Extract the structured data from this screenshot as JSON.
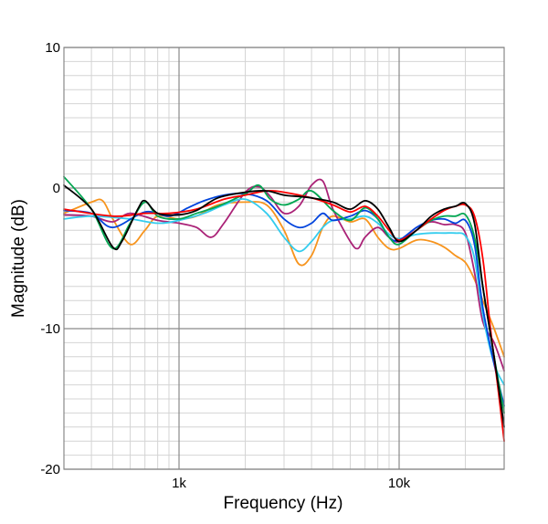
{
  "chart_data": {
    "type": "line",
    "xlabel": "Frequency (Hz)",
    "ylabel": "Magnitude (dB)",
    "x_scale": "log",
    "xlim": [
      300,
      30000
    ],
    "ylim": [
      -20,
      10
    ],
    "grid": true,
    "x_tick_labels": [
      {
        "value": 1000,
        "label": "1k"
      },
      {
        "value": 10000,
        "label": "10k"
      }
    ],
    "y_tick_labels": [
      {
        "value": 10,
        "label": "10"
      },
      {
        "value": 0,
        "label": "0"
      },
      {
        "value": -10,
        "label": "-10"
      },
      {
        "value": -20,
        "label": "-20"
      }
    ],
    "series": [
      {
        "color": "#000000",
        "points": [
          [
            300,
            0.2
          ],
          [
            400,
            -1.5
          ],
          [
            500,
            -4.2
          ],
          [
            550,
            -3.8
          ],
          [
            650,
            -1.5
          ],
          [
            700,
            -0.9
          ],
          [
            800,
            -1.8
          ],
          [
            1000,
            -1.9
          ],
          [
            1200,
            -1.6
          ],
          [
            1500,
            -0.7
          ],
          [
            2000,
            -0.3
          ],
          [
            2500,
            -0.2
          ],
          [
            3000,
            -0.5
          ],
          [
            3500,
            -0.6
          ],
          [
            4000,
            -0.7
          ],
          [
            5000,
            -1.0
          ],
          [
            6000,
            -1.5
          ],
          [
            7000,
            -0.9
          ],
          [
            8000,
            -1.5
          ],
          [
            9000,
            -2.8
          ],
          [
            10000,
            -3.8
          ],
          [
            12000,
            -3.0
          ],
          [
            14000,
            -2.0
          ],
          [
            16000,
            -1.5
          ],
          [
            18000,
            -1.3
          ],
          [
            20000,
            -1.1
          ],
          [
            22000,
            -2.5
          ],
          [
            24000,
            -7.0
          ],
          [
            27000,
            -12.0
          ],
          [
            30000,
            -17.0
          ]
        ]
      },
      {
        "color": "#ff0000",
        "points": [
          [
            300,
            -1.5
          ],
          [
            500,
            -2.0
          ],
          [
            700,
            -1.8
          ],
          [
            900,
            -1.8
          ],
          [
            1200,
            -1.5
          ],
          [
            1600,
            -0.8
          ],
          [
            2000,
            -0.5
          ],
          [
            2500,
            -0.2
          ],
          [
            3000,
            -0.3
          ],
          [
            4000,
            -0.7
          ],
          [
            5000,
            -1.2
          ],
          [
            6000,
            -1.7
          ],
          [
            7000,
            -1.3
          ],
          [
            8000,
            -2.0
          ],
          [
            9000,
            -3.0
          ],
          [
            10000,
            -3.7
          ],
          [
            12000,
            -3.0
          ],
          [
            14000,
            -2.2
          ],
          [
            16000,
            -1.6
          ],
          [
            18000,
            -1.3
          ],
          [
            20000,
            -1.2
          ],
          [
            22000,
            -2.0
          ],
          [
            24000,
            -5.0
          ],
          [
            26000,
            -10.0
          ],
          [
            28000,
            -14.0
          ],
          [
            30000,
            -18.0
          ]
        ]
      },
      {
        "color": "#00a651",
        "points": [
          [
            300,
            0.8
          ],
          [
            400,
            -1.5
          ],
          [
            500,
            -4.3
          ],
          [
            600,
            -2.5
          ],
          [
            700,
            -1.0
          ],
          [
            800,
            -2.0
          ],
          [
            1000,
            -2.2
          ],
          [
            1200,
            -1.8
          ],
          [
            1500,
            -1.3
          ],
          [
            2000,
            -0.4
          ],
          [
            2300,
            0.2
          ],
          [
            2600,
            -0.8
          ],
          [
            3000,
            -1.2
          ],
          [
            3500,
            -0.8
          ],
          [
            4000,
            -0.2
          ],
          [
            5000,
            -1.6
          ],
          [
            6000,
            -2.3
          ],
          [
            7000,
            -1.4
          ],
          [
            8000,
            -2.2
          ],
          [
            9000,
            -3.5
          ],
          [
            10000,
            -4.0
          ],
          [
            12000,
            -3.0
          ],
          [
            14000,
            -2.3
          ],
          [
            16000,
            -2.0
          ],
          [
            18000,
            -2.0
          ],
          [
            20000,
            -1.9
          ],
          [
            22000,
            -3.5
          ],
          [
            24000,
            -7.0
          ],
          [
            27000,
            -12.0
          ],
          [
            30000,
            -16.0
          ]
        ]
      },
      {
        "color": "#0044dd",
        "points": [
          [
            300,
            -1.6
          ],
          [
            400,
            -1.8
          ],
          [
            500,
            -2.8
          ],
          [
            700,
            -1.7
          ],
          [
            900,
            -2.0
          ],
          [
            1100,
            -1.4
          ],
          [
            1300,
            -0.9
          ],
          [
            1600,
            -0.5
          ],
          [
            2000,
            -0.4
          ],
          [
            2500,
            -0.9
          ],
          [
            3000,
            -2.2
          ],
          [
            3500,
            -2.8
          ],
          [
            4000,
            -2.5
          ],
          [
            4500,
            -1.8
          ],
          [
            5000,
            -2.3
          ],
          [
            6000,
            -2.0
          ],
          [
            7000,
            -1.6
          ],
          [
            8000,
            -2.2
          ],
          [
            9000,
            -3.5
          ],
          [
            10000,
            -3.7
          ],
          [
            12000,
            -2.8
          ],
          [
            14000,
            -2.3
          ],
          [
            16000,
            -2.2
          ],
          [
            18000,
            -2.5
          ],
          [
            20000,
            -2.3
          ],
          [
            22000,
            -4.0
          ],
          [
            24000,
            -8.5
          ],
          [
            27000,
            -12.5
          ],
          [
            30000,
            -15.5
          ]
        ]
      },
      {
        "color": "#33ccee",
        "points": [
          [
            300,
            -2.2
          ],
          [
            400,
            -2.0
          ],
          [
            600,
            -2.2
          ],
          [
            800,
            -2.5
          ],
          [
            1000,
            -2.3
          ],
          [
            1300,
            -1.8
          ],
          [
            1600,
            -1.2
          ],
          [
            2000,
            -0.8
          ],
          [
            2500,
            -1.8
          ],
          [
            3000,
            -3.5
          ],
          [
            3500,
            -4.5
          ],
          [
            4000,
            -3.8
          ],
          [
            4500,
            -2.8
          ],
          [
            5000,
            -2.3
          ],
          [
            6000,
            -2.2
          ],
          [
            7000,
            -2.0
          ],
          [
            8000,
            -2.5
          ],
          [
            9000,
            -3.3
          ],
          [
            10000,
            -3.6
          ],
          [
            12000,
            -3.3
          ],
          [
            14000,
            -3.2
          ],
          [
            16000,
            -3.2
          ],
          [
            18000,
            -3.2
          ],
          [
            20000,
            -3.4
          ],
          [
            22000,
            -5.0
          ],
          [
            24000,
            -9.0
          ],
          [
            27000,
            -12.5
          ],
          [
            30000,
            -14.0
          ]
        ]
      },
      {
        "color": "#aa2277",
        "points": [
          [
            300,
            -1.9
          ],
          [
            400,
            -2.0
          ],
          [
            500,
            -2.4
          ],
          [
            600,
            -1.8
          ],
          [
            800,
            -2.3
          ],
          [
            1000,
            -2.5
          ],
          [
            1200,
            -2.8
          ],
          [
            1400,
            -3.5
          ],
          [
            1600,
            -2.5
          ],
          [
            2000,
            -0.3
          ],
          [
            2300,
            0.1
          ],
          [
            2600,
            -0.6
          ],
          [
            3000,
            -1.8
          ],
          [
            3500,
            -1.3
          ],
          [
            4000,
            0.2
          ],
          [
            4500,
            0.5
          ],
          [
            5000,
            -1.5
          ],
          [
            6000,
            -3.8
          ],
          [
            6500,
            -4.3
          ],
          [
            7000,
            -3.5
          ],
          [
            8000,
            -2.8
          ],
          [
            9000,
            -3.5
          ],
          [
            10000,
            -3.8
          ],
          [
            12000,
            -2.8
          ],
          [
            14000,
            -2.4
          ],
          [
            16000,
            -2.6
          ],
          [
            18000,
            -2.6
          ],
          [
            20000,
            -3.2
          ],
          [
            22000,
            -6.0
          ],
          [
            24000,
            -9.5
          ],
          [
            27000,
            -11.0
          ],
          [
            30000,
            -13.0
          ]
        ]
      },
      {
        "color": "#f7941d",
        "points": [
          [
            300,
            -1.8
          ],
          [
            400,
            -1.0
          ],
          [
            450,
            -0.9
          ],
          [
            500,
            -2.2
          ],
          [
            600,
            -4.0
          ],
          [
            700,
            -3.0
          ],
          [
            800,
            -2.0
          ],
          [
            1000,
            -2.2
          ],
          [
            1200,
            -2.0
          ],
          [
            1500,
            -1.2
          ],
          [
            2000,
            -1.0
          ],
          [
            2500,
            -1.2
          ],
          [
            3000,
            -3.0
          ],
          [
            3500,
            -5.4
          ],
          [
            4000,
            -4.8
          ],
          [
            4500,
            -2.8
          ],
          [
            5000,
            -2.0
          ],
          [
            6000,
            -2.4
          ],
          [
            7000,
            -2.2
          ],
          [
            8000,
            -3.5
          ],
          [
            9000,
            -4.3
          ],
          [
            10000,
            -4.3
          ],
          [
            12000,
            -3.7
          ],
          [
            14000,
            -3.8
          ],
          [
            16000,
            -4.2
          ],
          [
            18000,
            -4.8
          ],
          [
            20000,
            -5.3
          ],
          [
            22000,
            -6.5
          ],
          [
            24000,
            -8.0
          ],
          [
            27000,
            -10.0
          ],
          [
            30000,
            -12.0
          ]
        ]
      }
    ]
  }
}
